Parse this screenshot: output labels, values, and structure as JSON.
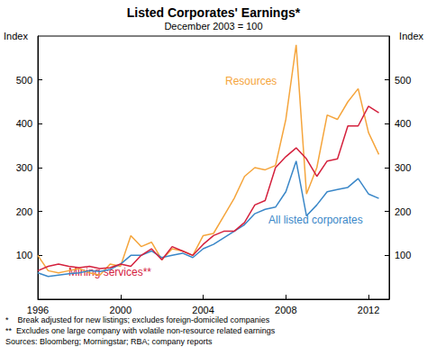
{
  "chart_data": {
    "type": "line",
    "title": "Listed Corporates' Earnings*",
    "subtitle": "December 2003 = 100",
    "ylabel": "Index",
    "x": [
      1996,
      1996.5,
      1997,
      1997.5,
      1998,
      1998.5,
      1999,
      1999.5,
      2000,
      2000.5,
      2001,
      2001.5,
      2002,
      2002.5,
      2003,
      2003.5,
      2004,
      2004.5,
      2005,
      2005.5,
      2006,
      2006.5,
      2007,
      2007.5,
      2008,
      2008.5,
      2009,
      2009.5,
      2010,
      2010.5,
      2011,
      2011.5,
      2012,
      2012.5
    ],
    "series": [
      {
        "name": "Resources",
        "color": "#f5a53c",
        "values": [
          100,
          65,
          60,
          65,
          70,
          60,
          55,
          80,
          75,
          145,
          120,
          130,
          90,
          115,
          110,
          100,
          145,
          150,
          190,
          230,
          280,
          300,
          295,
          305,
          410,
          580,
          240,
          300,
          420,
          410,
          450,
          480,
          380,
          330
        ]
      },
      {
        "name": "All listed corporates",
        "color": "#3a87c8",
        "values": [
          60,
          52,
          55,
          58,
          60,
          65,
          63,
          68,
          80,
          100,
          100,
          110,
          95,
          100,
          105,
          95,
          115,
          125,
          140,
          155,
          170,
          195,
          205,
          210,
          245,
          315,
          190,
          215,
          245,
          250,
          255,
          275,
          240,
          230
        ]
      },
      {
        "name": "Mining services**",
        "color": "#d4213d",
        "values": [
          65,
          75,
          80,
          75,
          72,
          75,
          70,
          72,
          80,
          75,
          100,
          115,
          90,
          120,
          110,
          100,
          125,
          145,
          155,
          155,
          175,
          215,
          225,
          300,
          325,
          345,
          320,
          280,
          315,
          320,
          395,
          395,
          440,
          425
        ]
      }
    ],
    "xlim": [
      1996,
      2013
    ],
    "xticks": [
      1996,
      2000,
      2004,
      2008,
      2012
    ],
    "ylim": [
      0,
      600
    ],
    "yticks": [
      100,
      200,
      300,
      400,
      500
    ],
    "grid": false,
    "notes": [
      "*    Break adjusted for new listings; excludes foreign-domiciled companies",
      "**  Excludes one large company with volatile non-resource related earnings",
      "Sources: Bloomberg; Morningstar; RBA; company reports"
    ]
  }
}
